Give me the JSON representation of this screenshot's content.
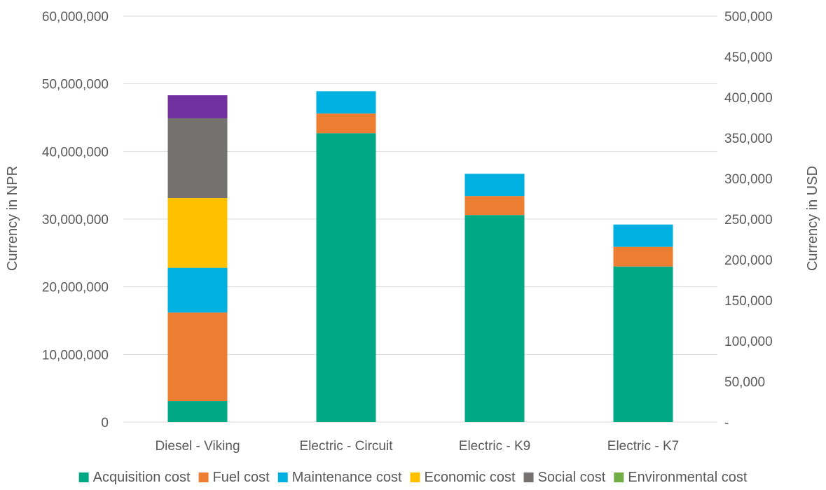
{
  "chart_data": {
    "type": "bar",
    "stacked": true,
    "categories": [
      "Diesel - Viking",
      "Electric - Circuit",
      "Electric - K9",
      "Electric - K7"
    ],
    "series": [
      {
        "name": "Acquisition cost",
        "color": "#00A886",
        "values": [
          3100000,
          42700000,
          30600000,
          23000000
        ]
      },
      {
        "name": "Fuel cost",
        "color": "#ED7D31",
        "values": [
          13100000,
          2900000,
          2800000,
          2900000
        ]
      },
      {
        "name": "Maintenance cost",
        "color": "#00B0E0",
        "values": [
          6600000,
          3300000,
          3300000,
          3300000
        ]
      },
      {
        "name": "Economic cost",
        "color": "#FFC000",
        "values": [
          10300000,
          0,
          0,
          0
        ]
      },
      {
        "name": "Social cost",
        "color": "#767171",
        "values": [
          11800000,
          0,
          0,
          0
        ]
      },
      {
        "name": "Environmental cost",
        "color": "#70AD47",
        "values": [
          0,
          0,
          0,
          0
        ]
      },
      {
        "color": "#7030A0",
        "values": [
          3400000,
          0,
          0,
          0
        ]
      }
    ],
    "legend_count": 6,
    "legend_position": "bottom",
    "ylabel": "Currency in NPR",
    "ylim": [
      0,
      60000000
    ],
    "yticks": [
      0,
      10000000,
      20000000,
      30000000,
      40000000,
      50000000,
      60000000
    ],
    "ytick_labels": [
      "0",
      "10,000,000",
      "20,000,000",
      "30,000,000",
      "40,000,000",
      "50,000,000",
      "60,000,000"
    ],
    "y2label": "Currency in USD",
    "y2lim": [
      0,
      500000
    ],
    "y2ticks": [
      0,
      50000,
      100000,
      150000,
      200000,
      250000,
      300000,
      350000,
      400000,
      450000,
      500000
    ],
    "y2tick_labels": [
      "-",
      "50,000",
      "100,000",
      "150,000",
      "200,000",
      "250,000",
      "300,000",
      "350,000",
      "400,000",
      "450,000",
      "500,000"
    ],
    "grid": true,
    "gridline_color": "#D9D9D9"
  }
}
